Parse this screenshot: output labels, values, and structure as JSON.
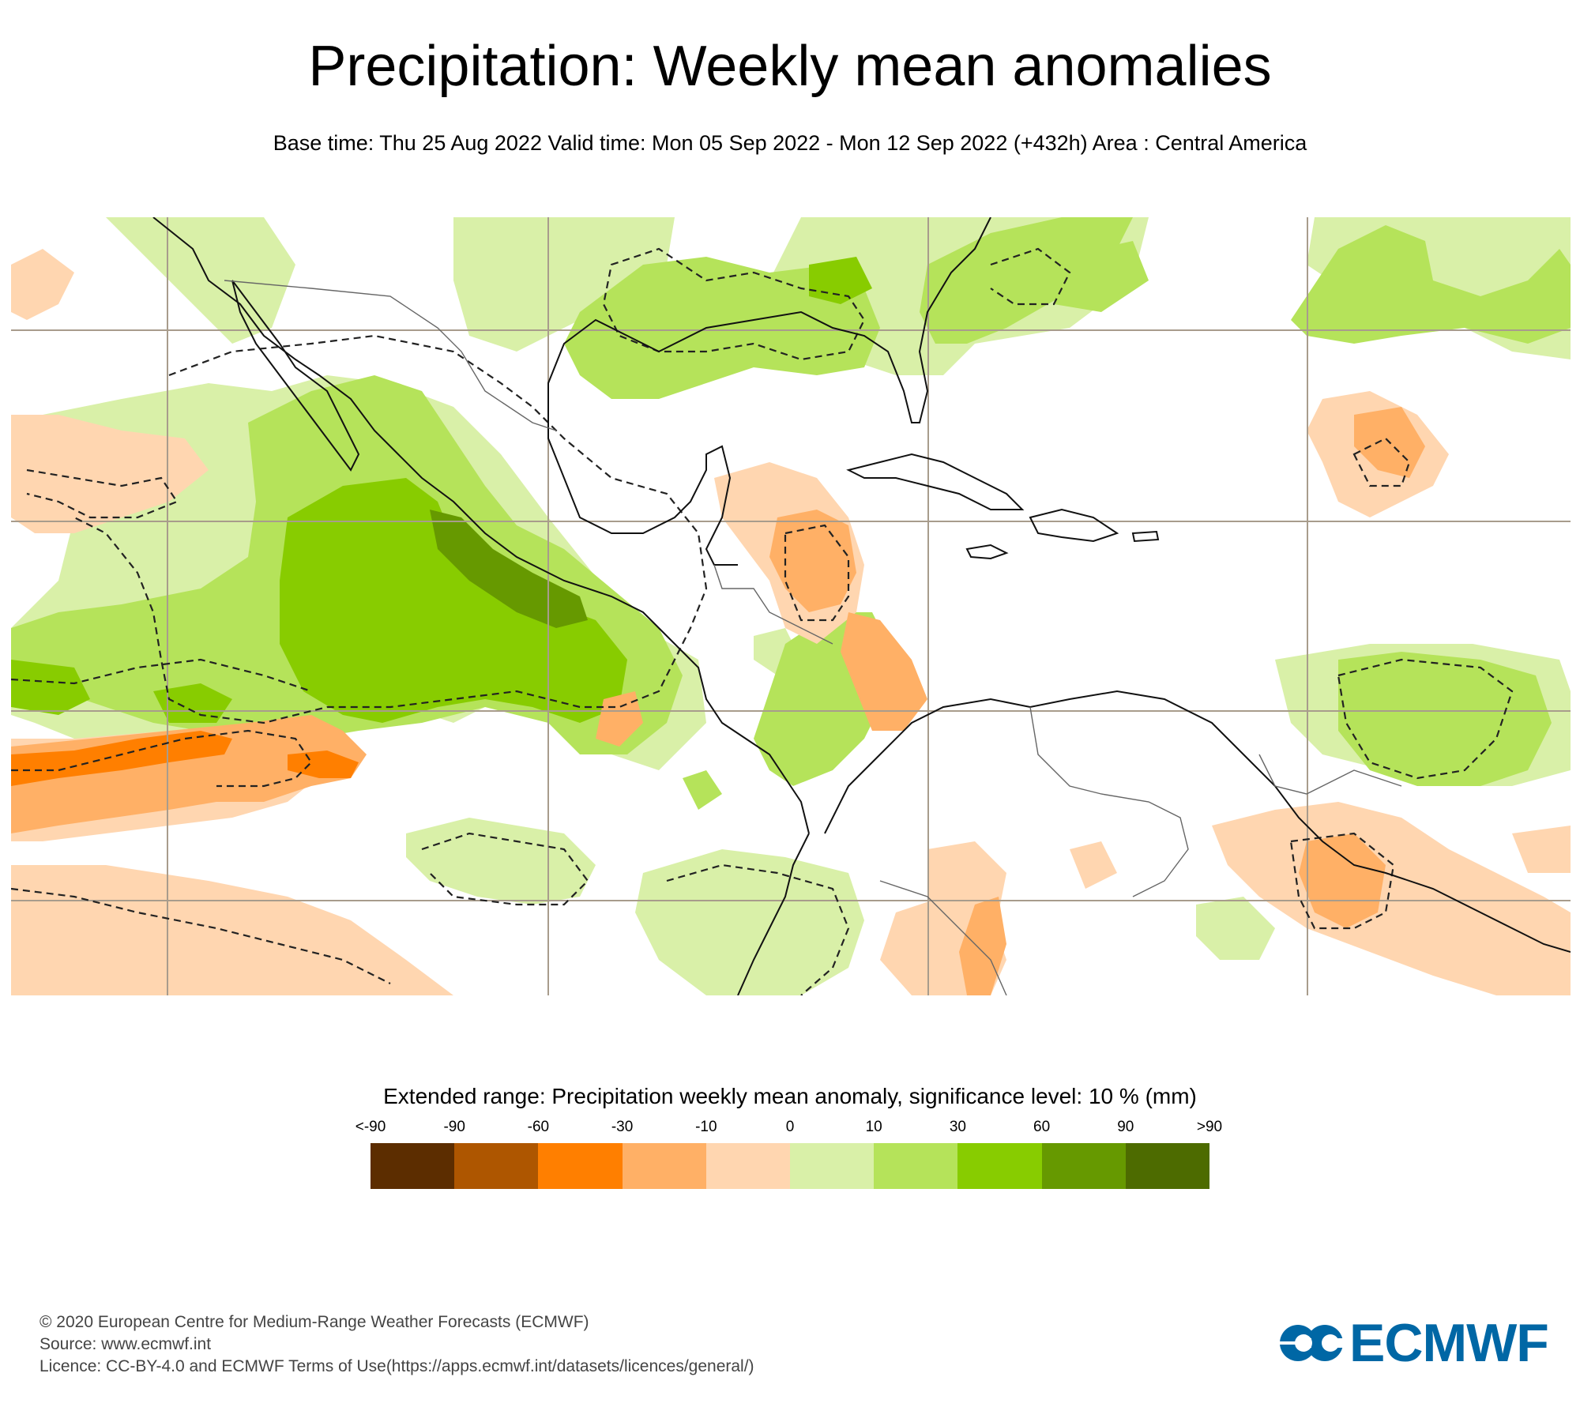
{
  "header": {
    "title": "Precipitation: Weekly mean anomalies",
    "subtitle": "Base time: Thu 25 Aug 2022 Valid time: Mon 05 Sep 2022 - Mon 12 Sep 2022 (+432h) Area : Central America"
  },
  "map": {
    "area": "Central America",
    "gridline_color": "#a89c8c",
    "coastline_color": "#000000",
    "border_color": "#555555",
    "significance_contour": "dashed"
  },
  "legend": {
    "title": "Extended range: Precipitation weekly mean anomaly, significance level: 10 % (mm)",
    "labels": [
      "<-90",
      "-90",
      "-60",
      "-30",
      "-10",
      "0",
      "10",
      "30",
      "60",
      "90",
      ">90"
    ],
    "colors": [
      "#5c2d00",
      "#ae5600",
      "#ff7f00",
      "#ffb066",
      "#ffd6b0",
      "#d9f0a8",
      "#b5e35a",
      "#88cc00",
      "#669900",
      "#4d6b00"
    ]
  },
  "footer": {
    "copyright": "© 2020 European Centre for Medium-Range Weather Forecasts (ECMWF)",
    "source": "Source: www.ecmwf.int",
    "licence": "Licence: CC-BY-4.0 and ECMWF Terms of Use(https://apps.ecmwf.int/datasets/licences/general/)"
  },
  "logo": {
    "text": "ECMWF",
    "color": "#0067a5"
  }
}
